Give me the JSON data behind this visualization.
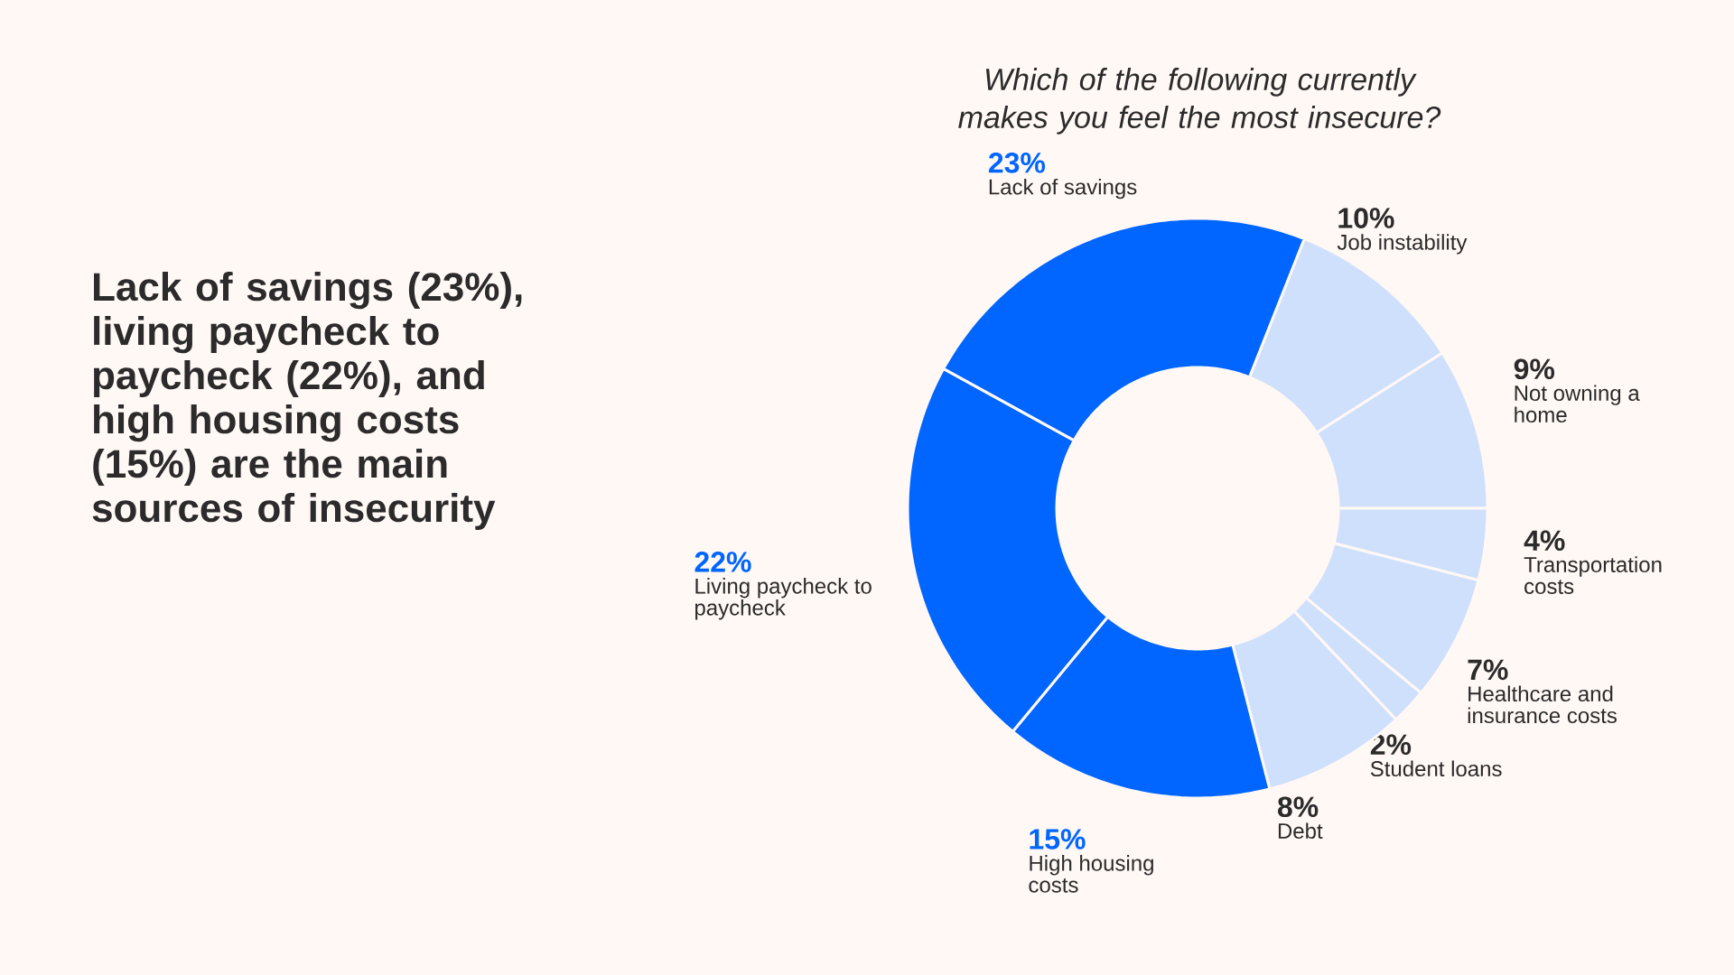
{
  "chart_data": {
    "type": "donut",
    "title": "Which of the following currently makes you feel the most insecure?",
    "subtitle": "Lack of savings (23%), living paycheck to paycheck (22%), and high housing costs (15%) are the main sources of insecurity",
    "categories": [
      "Job instability",
      "Not owning a home",
      "Transportation costs",
      "Healthcare and insurance costs",
      "Student loans",
      "Debt",
      "High housing costs",
      "Living paycheck to paycheck",
      "Lack of savings"
    ],
    "values": [
      10,
      9,
      4,
      7,
      2,
      8,
      15,
      22,
      23
    ],
    "value_labels": [
      "10%",
      "9%",
      "4%",
      "7%",
      "2%",
      "8%",
      "15%",
      "22%",
      "23%"
    ],
    "colors": [
      "#cfe0fc",
      "#cfe0fc",
      "#cfe0fc",
      "#cfe0fc",
      "#cfe0fc",
      "#cfe0fc",
      "#0066ff",
      "#0066ff",
      "#0066ff"
    ]
  }
}
